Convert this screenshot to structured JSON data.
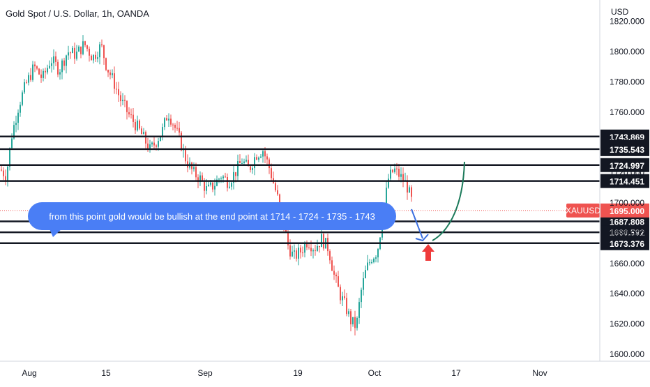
{
  "header": {
    "title": "Gold Spot / U.S. Dollar, 1h, OANDA",
    "currency": "USD"
  },
  "colors": {
    "up": "#26a69a",
    "down": "#ef5350",
    "hline": "#131722",
    "price_tag": "#ef5350",
    "level_tag": "#131722",
    "callout": "#4a7ef5",
    "arc": "#1b7a5a",
    "arrow_blue": "#3b6fe0",
    "arrow_red": "#ef3b3b"
  },
  "chart_data": {
    "type": "candlestick",
    "symbol": "XAUUSD",
    "last_price": "1695.000",
    "y_ticks": [
      "1600.000",
      "1620.000",
      "1640.000",
      "1660.000",
      "1680.000",
      "1700.000",
      "1720.000",
      "1740.000",
      "1760.000",
      "1780.000",
      "1800.000",
      "1820.000"
    ],
    "y_range": [
      1597,
      1823
    ],
    "x_ticks": [
      "Aug",
      "15",
      "Sep",
      "19",
      "Oct",
      "17",
      "Nov"
    ],
    "levels": [
      {
        "label": "1743.869",
        "value": 1743.869
      },
      {
        "label": "1735.543",
        "value": 1735.543
      },
      {
        "label": "1724.997",
        "value": 1724.997
      },
      {
        "label": "1714.451",
        "value": 1714.451
      },
      {
        "label": "1687.808",
        "value": 1687.808
      },
      {
        "label": "1680.592",
        "value": 1680.592
      },
      {
        "label": "1673.376",
        "value": 1673.376
      }
    ],
    "path_points": [
      [
        0,
        1722
      ],
      [
        8,
        1718
      ],
      [
        16,
        1745
      ],
      [
        26,
        1765
      ],
      [
        36,
        1778
      ],
      [
        48,
        1790
      ],
      [
        60,
        1782
      ],
      [
        72,
        1795
      ],
      [
        84,
        1788
      ],
      [
        96,
        1800
      ],
      [
        108,
        1798
      ],
      [
        120,
        1805
      ],
      [
        132,
        1796
      ],
      [
        144,
        1804
      ],
      [
        152,
        1790
      ],
      [
        162,
        1780
      ],
      [
        172,
        1768
      ],
      [
        184,
        1758
      ],
      [
        196,
        1750
      ],
      [
        206,
        1742
      ],
      [
        214,
        1735
      ],
      [
        222,
        1740
      ],
      [
        232,
        1748
      ],
      [
        240,
        1760
      ],
      [
        248,
        1752
      ],
      [
        258,
        1740
      ],
      [
        266,
        1728
      ],
      [
        276,
        1720
      ],
      [
        286,
        1716
      ],
      [
        296,
        1708
      ],
      [
        306,
        1712
      ],
      [
        316,
        1718
      ],
      [
        326,
        1714
      ],
      [
        336,
        1720
      ],
      [
        346,
        1728
      ],
      [
        356,
        1722
      ],
      [
        366,
        1732
      ],
      [
        376,
        1735
      ],
      [
        386,
        1722
      ],
      [
        396,
        1705
      ],
      [
        404,
        1690
      ],
      [
        412,
        1672
      ],
      [
        420,
        1664
      ],
      [
        430,
        1668
      ],
      [
        440,
        1675
      ],
      [
        450,
        1670
      ],
      [
        460,
        1676
      ],
      [
        470,
        1670
      ],
      [
        478,
        1652
      ],
      [
        486,
        1640
      ],
      [
        494,
        1632
      ],
      [
        502,
        1622
      ],
      [
        510,
        1618
      ],
      [
        516,
        1640
      ],
      [
        524,
        1656
      ],
      [
        532,
        1664
      ],
      [
        540,
        1668
      ],
      [
        548,
        1692
      ],
      [
        556,
        1716
      ],
      [
        564,
        1722
      ],
      [
        572,
        1718
      ],
      [
        582,
        1712
      ],
      [
        590,
        1700
      ]
    ],
    "annotation": "from this point gold would be bullish at the end point at 1714 - 1724 - 1735 - 1743"
  }
}
